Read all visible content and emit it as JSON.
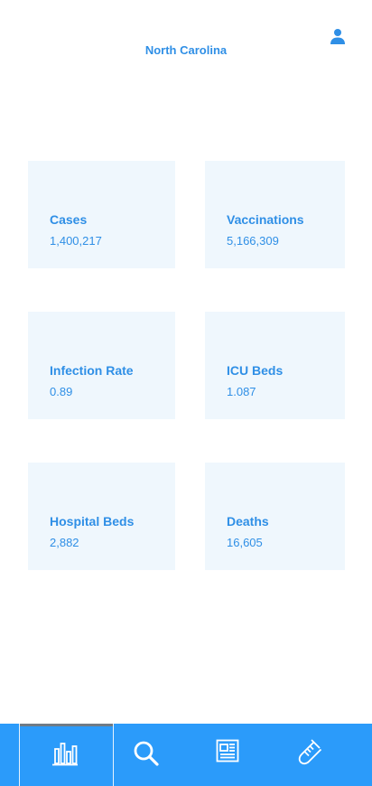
{
  "header": {
    "title": "North Carolina",
    "profile_icon": "person-icon"
  },
  "colors": {
    "accent": "#2f8fe6",
    "card_bg": "#eff7fd",
    "nav_bg": "#2b9bfa"
  },
  "stats": [
    {
      "label": "Cases",
      "value": "1,400,217"
    },
    {
      "label": "Vaccinations",
      "value": "5,166,309"
    },
    {
      "label": "Infection Rate",
      "value": "0.89"
    },
    {
      "label": "ICU Beds",
      "value": "1.087"
    },
    {
      "label": "Hospital Beds",
      "value": "2,882"
    },
    {
      "label": "Deaths",
      "value": "16,605"
    }
  ],
  "bottom_nav": {
    "items": [
      {
        "icon": "bar-chart-icon",
        "active": true
      },
      {
        "icon": "search-icon",
        "active": false
      },
      {
        "icon": "newspaper-icon",
        "active": false
      },
      {
        "icon": "test-tube-icon",
        "active": false
      }
    ]
  }
}
